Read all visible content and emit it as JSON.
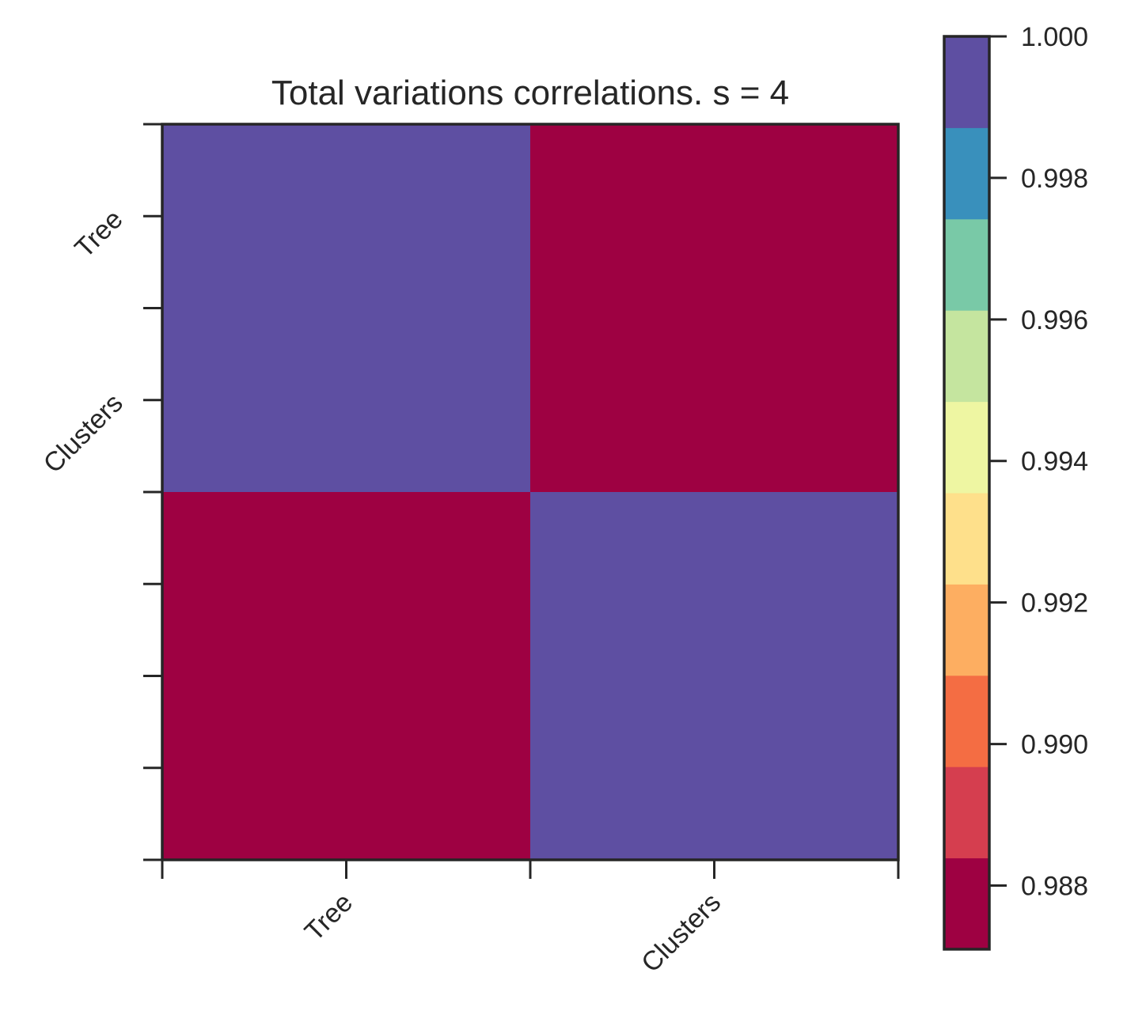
{
  "chart_data": {
    "type": "heatmap",
    "title": "Total variations correlations. s = 4",
    "x_categories": [
      "Tree",
      "Clusters"
    ],
    "y_categories": [
      "Tree",
      "Clusters"
    ],
    "values": [
      [
        1.0,
        0.9871
      ],
      [
        0.9871,
        1.0
      ]
    ],
    "colorbar": {
      "min": 0.9871,
      "max": 1.0,
      "ticks": [
        "0.988",
        "0.990",
        "0.992",
        "0.994",
        "0.996",
        "0.998",
        "1.000"
      ],
      "levels": [
        {
          "color": "#9e0142"
        },
        {
          "color": "#d53e4f"
        },
        {
          "color": "#f46d43"
        },
        {
          "color": "#fdae61"
        },
        {
          "color": "#fee08b"
        },
        {
          "color": "#eef6a2"
        },
        {
          "color": "#c5e59f"
        },
        {
          "color": "#79c9a7"
        },
        {
          "color": "#3990bc"
        },
        {
          "color": "#5e4fa2"
        }
      ]
    },
    "colormap": "Spectral (discrete, 10 levels)",
    "grid": false
  }
}
